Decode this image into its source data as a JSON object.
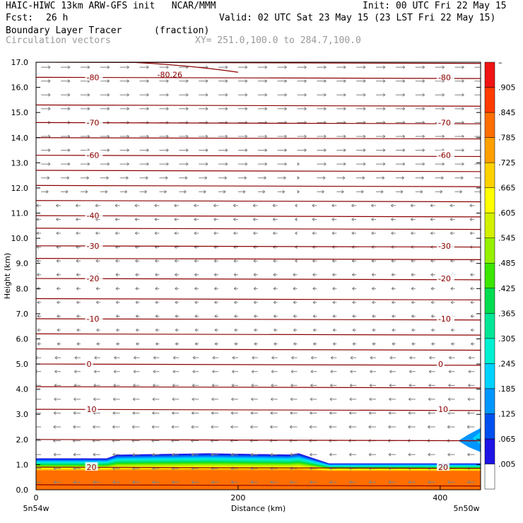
{
  "header": {
    "title_left": "HAIC-HIWC 13km ARW-GFS init   NCAR/MMM",
    "init": "Init: 00 UTC Fri 22 May 15",
    "fcst_label": "Fcst:",
    "fcst_value": "26 h",
    "valid": "Valid: 02 UTC Sat 23 May 15 (23 LST Fri 22 May 15)",
    "field_name": "Boundary Layer Tracer",
    "field_unit": "(fraction)",
    "vector_label": "Circulation vectors",
    "xy_range": "XY= 251.0,100.0 to 284.7,100.0"
  },
  "colors": {
    "contour_line": "#8b0000",
    "vector": "#808080",
    "axis": "#000000"
  },
  "chart_data": {
    "type": "heatmap",
    "ylabel": "Height (km)",
    "xlabel": "Distance (km)",
    "xlim": [
      0,
      440
    ],
    "ylim": [
      0,
      17
    ],
    "x_ticks": [
      "0",
      "200",
      "400"
    ],
    "x_tick_values": [
      0,
      200,
      400
    ],
    "y_ticks": [
      "0.0",
      "1.0",
      "2.0",
      "3.0",
      "4.0",
      "5.0",
      "6.0",
      "7.0",
      "8.0",
      "9.0",
      "10.0",
      "11.0",
      "12.0",
      "13.0",
      "14.0",
      "15.0",
      "16.0",
      "17.0"
    ],
    "x_endpoints": [
      "5n54w",
      "5n50w"
    ],
    "colorbar_labels": [
      ".005",
      ".065",
      ".125",
      ".185",
      ".245",
      ".305",
      ".365",
      ".425",
      ".485",
      ".545",
      ".605",
      ".665",
      ".725",
      ".785",
      ".845",
      ".905",
      "–"
    ],
    "colorbar_colors": [
      "#ffffff",
      "#1e14e6",
      "#0050f0",
      "#0096ff",
      "#00d2ff",
      "#00f0d2",
      "#00e696",
      "#00dc50",
      "#3ce600",
      "#96f000",
      "#d2f000",
      "#ffff00",
      "#ffd200",
      "#ffa000",
      "#ff6e00",
      "#ff3c00",
      "#f01414"
    ],
    "temperature_contours": [
      {
        "label": "-80",
        "height": 16.4
      },
      {
        "label": "-70",
        "height": 14.6
      },
      {
        "label": "-60",
        "height": 13.3
      },
      {
        "label": "-40",
        "height": 10.9
      },
      {
        "label": "-30",
        "height": 9.7
      },
      {
        "label": "-20",
        "height": 8.4
      },
      {
        "label": "-10",
        "height": 6.8
      },
      {
        "label": "0",
        "height": 5.0
      },
      {
        "label": "10",
        "height": 3.2
      },
      {
        "label": "20",
        "height": 0.9
      }
    ],
    "annotation": "-80.26",
    "tracer_layer": {
      "left_top_km": 1.25,
      "mid_top_km": 1.45,
      "right_top_km": 1.05,
      "full_value_below_km": 0.8
    }
  }
}
